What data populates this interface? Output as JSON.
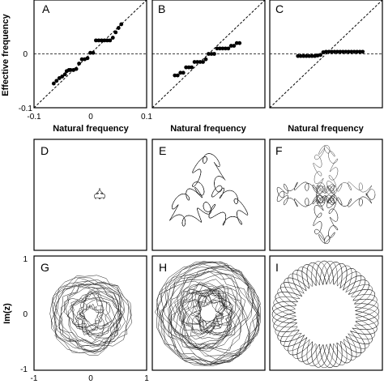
{
  "figure": {
    "panel_letters": [
      "A",
      "B",
      "C",
      "D",
      "E",
      "F",
      "G",
      "H",
      "I"
    ],
    "top_row": {
      "ylabel": "Effective frequency",
      "xlabel": "Natural frequency",
      "y_ticks": [
        "0",
        "-0.1"
      ],
      "x_ticks": [
        "-0.1",
        "0",
        "0.1"
      ]
    },
    "bottom_row": {
      "ylabel": "Im(z)",
      "y_ticks": [
        "1",
        "0",
        "-1"
      ],
      "x_ticks": [
        "-1",
        "0",
        "1"
      ]
    },
    "colors": {
      "markers": "#000000",
      "curves": "#222222",
      "frame": "#000000"
    }
  },
  "chart_data": [
    {
      "panel": "A",
      "type": "scatter",
      "xlim": [
        -0.1,
        0.1
      ],
      "ylim": [
        -0.1,
        0.1
      ],
      "reference_lines": [
        "y = x (dashed)",
        "y = 0 (dashed)"
      ],
      "points": [
        [
          -0.065,
          -0.055
        ],
        [
          -0.06,
          -0.05
        ],
        [
          -0.055,
          -0.045
        ],
        [
          -0.05,
          -0.042
        ],
        [
          -0.045,
          -0.038
        ],
        [
          -0.042,
          -0.032
        ],
        [
          -0.038,
          -0.03
        ],
        [
          -0.035,
          -0.03
        ],
        [
          -0.03,
          -0.03
        ],
        [
          -0.025,
          -0.028
        ],
        [
          -0.02,
          -0.018
        ],
        [
          -0.015,
          -0.01
        ],
        [
          -0.01,
          -0.01
        ],
        [
          -0.005,
          -0.008
        ],
        [
          0.0,
          0.002
        ],
        [
          0.005,
          0.002
        ],
        [
          0.01,
          0.025
        ],
        [
          0.015,
          0.025
        ],
        [
          0.02,
          0.025
        ],
        [
          0.025,
          0.025
        ],
        [
          0.03,
          0.025
        ],
        [
          0.035,
          0.025
        ],
        [
          0.04,
          0.03
        ],
        [
          0.045,
          0.04
        ],
        [
          0.05,
          0.048
        ],
        [
          0.055,
          0.055
        ]
      ]
    },
    {
      "panel": "B",
      "type": "scatter",
      "xlim": [
        -0.1,
        0.1
      ],
      "ylim": [
        -0.1,
        0.1
      ],
      "reference_lines": [
        "y = x (dashed)",
        "y = 0 (dashed)"
      ],
      "points": [
        [
          -0.06,
          -0.04
        ],
        [
          -0.055,
          -0.04
        ],
        [
          -0.05,
          -0.035
        ],
        [
          -0.045,
          -0.035
        ],
        [
          -0.04,
          -0.025
        ],
        [
          -0.035,
          -0.025
        ],
        [
          -0.03,
          -0.025
        ],
        [
          -0.025,
          -0.015
        ],
        [
          -0.02,
          -0.015
        ],
        [
          -0.015,
          -0.015
        ],
        [
          -0.01,
          -0.015
        ],
        [
          -0.005,
          -0.01
        ],
        [
          0.0,
          0.0
        ],
        [
          0.005,
          0.0
        ],
        [
          0.01,
          0.0
        ],
        [
          0.015,
          0.01
        ],
        [
          0.02,
          0.01
        ],
        [
          0.025,
          0.01
        ],
        [
          0.03,
          0.01
        ],
        [
          0.035,
          0.01
        ],
        [
          0.04,
          0.015
        ],
        [
          0.045,
          0.015
        ],
        [
          0.05,
          0.02
        ],
        [
          0.055,
          0.02
        ]
      ]
    },
    {
      "panel": "C",
      "type": "scatter",
      "xlim": [
        -0.1,
        0.1
      ],
      "ylim": [
        -0.1,
        0.1
      ],
      "reference_lines": [
        "y = x (dashed)",
        "y = 0 (dashed)"
      ],
      "points": [
        [
          -0.05,
          -0.004
        ],
        [
          -0.045,
          -0.004
        ],
        [
          -0.04,
          -0.004
        ],
        [
          -0.035,
          -0.004
        ],
        [
          -0.03,
          -0.004
        ],
        [
          -0.025,
          -0.004
        ],
        [
          -0.02,
          -0.004
        ],
        [
          -0.015,
          -0.003
        ],
        [
          -0.01,
          -0.002
        ],
        [
          -0.005,
          0.003
        ],
        [
          0.0,
          0.004
        ],
        [
          0.005,
          0.004
        ],
        [
          0.01,
          0.004
        ],
        [
          0.015,
          0.004
        ],
        [
          0.02,
          0.004
        ],
        [
          0.025,
          0.004
        ],
        [
          0.03,
          0.004
        ],
        [
          0.035,
          0.004
        ],
        [
          0.04,
          0.004
        ],
        [
          0.045,
          0.004
        ],
        [
          0.05,
          0.004
        ],
        [
          0.055,
          0.004
        ],
        [
          0.06,
          0.004
        ],
        [
          0.065,
          0.004
        ]
      ]
    }
  ]
}
